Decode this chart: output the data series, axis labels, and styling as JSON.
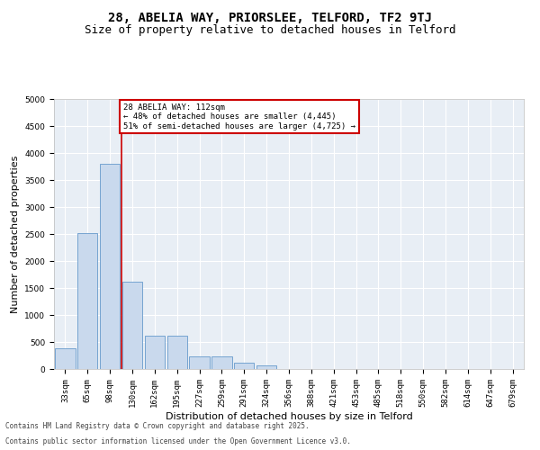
{
  "title": "28, ABELIA WAY, PRIORSLEE, TELFORD, TF2 9TJ",
  "subtitle": "Size of property relative to detached houses in Telford",
  "xlabel": "Distribution of detached houses by size in Telford",
  "ylabel": "Number of detached properties",
  "categories": [
    "33sqm",
    "65sqm",
    "98sqm",
    "130sqm",
    "162sqm",
    "195sqm",
    "227sqm",
    "259sqm",
    "291sqm",
    "324sqm",
    "356sqm",
    "388sqm",
    "421sqm",
    "453sqm",
    "485sqm",
    "518sqm",
    "550sqm",
    "582sqm",
    "614sqm",
    "647sqm",
    "679sqm"
  ],
  "values": [
    380,
    2520,
    3800,
    1620,
    620,
    620,
    230,
    230,
    120,
    60,
    0,
    0,
    0,
    0,
    0,
    0,
    0,
    0,
    0,
    0,
    0
  ],
  "bar_color": "#c9d9ed",
  "bar_edge_color": "#6699cc",
  "red_line_x": 2,
  "annotation_text": "28 ABELIA WAY: 112sqm\n← 48% of detached houses are smaller (4,445)\n51% of semi-detached houses are larger (4,725) →",
  "annotation_box_color": "#ffffff",
  "annotation_box_edge_color": "#cc0000",
  "ylim": [
    0,
    5000
  ],
  "yticks": [
    0,
    500,
    1000,
    1500,
    2000,
    2500,
    3000,
    3500,
    4000,
    4500,
    5000
  ],
  "background_color": "#e8eef5",
  "grid_color": "#ffffff",
  "footer_line1": "Contains HM Land Registry data © Crown copyright and database right 2025.",
  "footer_line2": "Contains public sector information licensed under the Open Government Licence v3.0.",
  "title_fontsize": 10,
  "subtitle_fontsize": 9,
  "tick_fontsize": 6.5,
  "ylabel_fontsize": 8,
  "xlabel_fontsize": 8,
  "red_line_color": "#cc0000",
  "footer_fontsize": 5.5
}
